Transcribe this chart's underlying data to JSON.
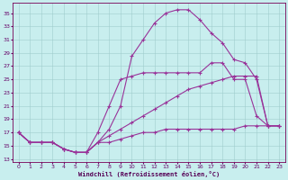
{
  "xlabel": "Windchill (Refroidissement éolien,°C)",
  "bg_color": "#c8eeee",
  "line_color": "#993399",
  "grid_color": "#a0cccc",
  "y_ticks": [
    13,
    15,
    17,
    19,
    21,
    23,
    25,
    27,
    29,
    31,
    33,
    35
  ],
  "ylim": [
    12.5,
    36.5
  ],
  "xlim": [
    -0.5,
    23.5
  ],
  "curve1_x": [
    0,
    1,
    2,
    3,
    4,
    5,
    6,
    7,
    8,
    9,
    10,
    11,
    12,
    13,
    14,
    15,
    16,
    17,
    18,
    19,
    20,
    21,
    22,
    23
  ],
  "curve1_y": [
    17,
    15.5,
    15.5,
    15.5,
    14.5,
    14.0,
    14.0,
    15.5,
    17.5,
    21.0,
    28.5,
    31.0,
    33.5,
    35.0,
    35.5,
    35.5,
    34.0,
    32.0,
    30.5,
    28.0,
    27.5,
    25.0,
    18.0,
    18.0
  ],
  "curve2_x": [
    0,
    1,
    2,
    3,
    4,
    5,
    6,
    7,
    8,
    9,
    10,
    11,
    12,
    13,
    14,
    15,
    16,
    17,
    18,
    19,
    20,
    21,
    22,
    23
  ],
  "curve2_y": [
    17,
    15.5,
    15.5,
    15.5,
    14.5,
    14.0,
    14.0,
    17.0,
    21.0,
    25.0,
    25.5,
    26.0,
    26.0,
    26.0,
    26.0,
    26.0,
    26.0,
    27.5,
    27.5,
    25.0,
    25.0,
    19.5,
    18.0,
    18.0
  ],
  "curve3_x": [
    0,
    1,
    2,
    3,
    4,
    5,
    6,
    7,
    8,
    9,
    10,
    11,
    12,
    13,
    14,
    15,
    16,
    17,
    18,
    19,
    20,
    21,
    22,
    23
  ],
  "curve3_y": [
    17,
    15.5,
    15.5,
    15.5,
    14.5,
    14.0,
    14.0,
    15.5,
    16.5,
    17.5,
    18.5,
    19.5,
    20.5,
    21.5,
    22.5,
    23.5,
    24.0,
    24.5,
    25.0,
    25.5,
    25.5,
    25.5,
    18.0,
    18.0
  ],
  "curve4_x": [
    0,
    1,
    2,
    3,
    4,
    5,
    6,
    7,
    8,
    9,
    10,
    11,
    12,
    13,
    14,
    15,
    16,
    17,
    18,
    19,
    20,
    21,
    22,
    23
  ],
  "curve4_y": [
    17,
    15.5,
    15.5,
    15.5,
    14.5,
    14.0,
    14.0,
    15.5,
    15.5,
    16.0,
    16.5,
    17.0,
    17.0,
    17.5,
    17.5,
    17.5,
    17.5,
    17.5,
    17.5,
    17.5,
    18.0,
    18.0,
    18.0,
    18.0
  ]
}
